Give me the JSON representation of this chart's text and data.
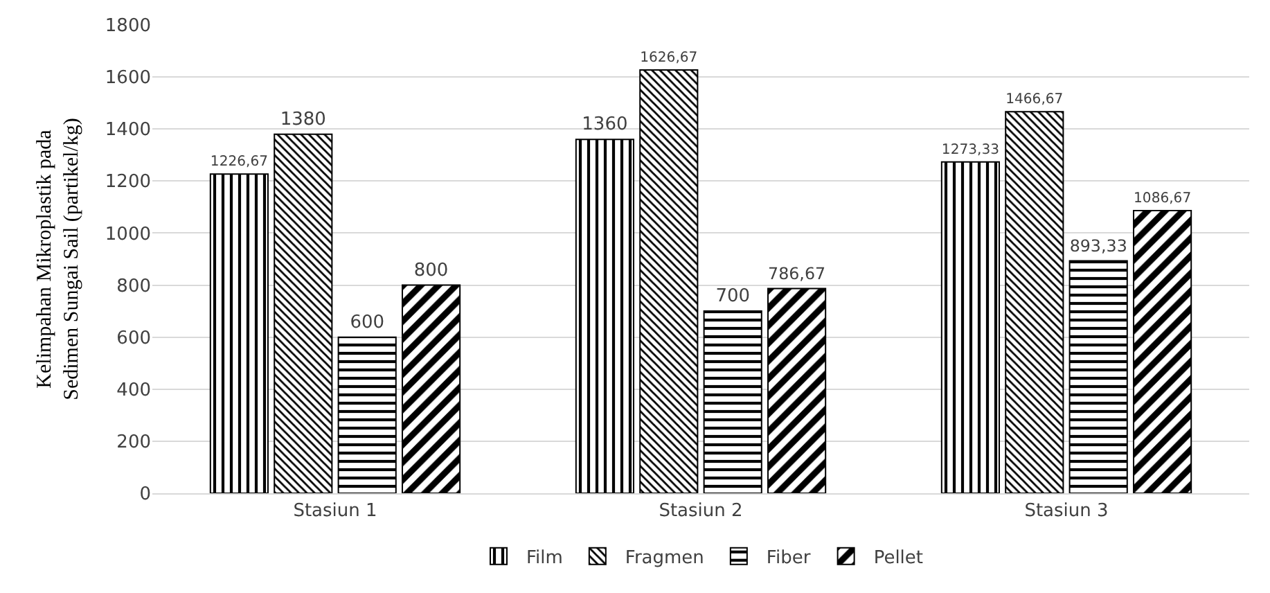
{
  "chart_data": {
    "type": "bar",
    "ylabel": "Kelimpahan Mikroplastik pada\nSedimen Sungai Sail (partikel/kg)",
    "categories": [
      "Stasiun 1",
      "Stasiun 2",
      "Stasiun 3"
    ],
    "series": [
      {
        "name": "Film",
        "color": "#000000",
        "values": [
          1226.67,
          1360,
          1273.33
        ],
        "value_labels": [
          "1226,67",
          "1360",
          "1273,33"
        ]
      },
      {
        "name": "Fragmen",
        "color": "#000000",
        "values": [
          1380,
          1626.67,
          1466.67
        ],
        "value_labels": [
          "1380",
          "1626,67",
          "1466,67"
        ]
      },
      {
        "name": "Fiber",
        "color": "#000000",
        "values": [
          600,
          700,
          893.33
        ],
        "value_labels": [
          "600",
          "700",
          "893,33"
        ]
      },
      {
        "name": "Pellet",
        "color": "#000000",
        "values": [
          800,
          786.67,
          1086.67
        ],
        "value_labels": [
          "800",
          "786,67",
          "1086,67"
        ]
      }
    ],
    "ylim": [
      0,
      1800
    ],
    "yticks": [
      0,
      200,
      400,
      600,
      800,
      1000,
      1200,
      1400,
      1600,
      1800
    ],
    "grid": "y",
    "legend": "bottom"
  }
}
